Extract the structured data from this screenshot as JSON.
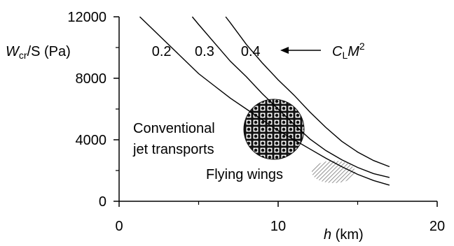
{
  "chart_data": {
    "type": "line",
    "ylabel_main": "W",
    "ylabel_sub": "cr",
    "ylabel_rest": "/S (Pa)",
    "xlabel_var": "h",
    "xlabel_unit": " (km)",
    "xlim": [
      0,
      20
    ],
    "ylim": [
      0,
      12000
    ],
    "xticks": [
      0,
      10,
      20
    ],
    "yticks": [
      0,
      4000,
      8000,
      12000
    ],
    "grid": false,
    "legend_label_main": "C",
    "legend_label_sub": "L",
    "legend_label_mid": "M",
    "legend_label_sup": "2",
    "series": [
      {
        "name": "0.2",
        "x": [
          1.3,
          2.0,
          3.0,
          4.0,
          5.0,
          6.0,
          7.0,
          8.0,
          9.0,
          10.0,
          11.0,
          12.0,
          13.0,
          14.0,
          15.0,
          16.0,
          17.0
        ],
        "y": [
          12000,
          11300,
          10300,
          9300,
          8300,
          7500,
          6700,
          6000,
          5300,
          4600,
          4000,
          3400,
          2800,
          2250,
          1750,
          1350,
          1050
        ]
      },
      {
        "name": "0.3",
        "x": [
          4.6,
          5.0,
          6.0,
          7.0,
          8.0,
          9.0,
          10.0,
          11.0,
          12.0,
          13.0,
          14.0,
          15.0,
          16.0,
          17.0
        ],
        "y": [
          12000,
          11500,
          10300,
          9100,
          8100,
          7000,
          6000,
          5000,
          4050,
          3300,
          2700,
          2200,
          1800,
          1550
        ]
      },
      {
        "name": "0.4",
        "x": [
          6.7,
          7.0,
          8.0,
          9.0,
          10.0,
          11.0,
          12.0,
          13.0,
          14.0,
          15.0,
          16.0,
          17.0
        ],
        "y": [
          12000,
          11600,
          10200,
          9000,
          7900,
          6900,
          5800,
          4800,
          3900,
          3200,
          2650,
          2250
        ]
      }
    ],
    "annotations": {
      "arrow_label": "C_L M^2",
      "region_conventional": [
        "Conventional",
        "jet transports"
      ],
      "region_flying": "Flying wings"
    },
    "regions": [
      {
        "name": "Conventional jet transports",
        "center": [
          9.5,
          4600
        ],
        "fill": "checkered"
      },
      {
        "name": "Flying wings",
        "center": [
          13.5,
          2200
        ],
        "fill": "hatched"
      }
    ]
  }
}
